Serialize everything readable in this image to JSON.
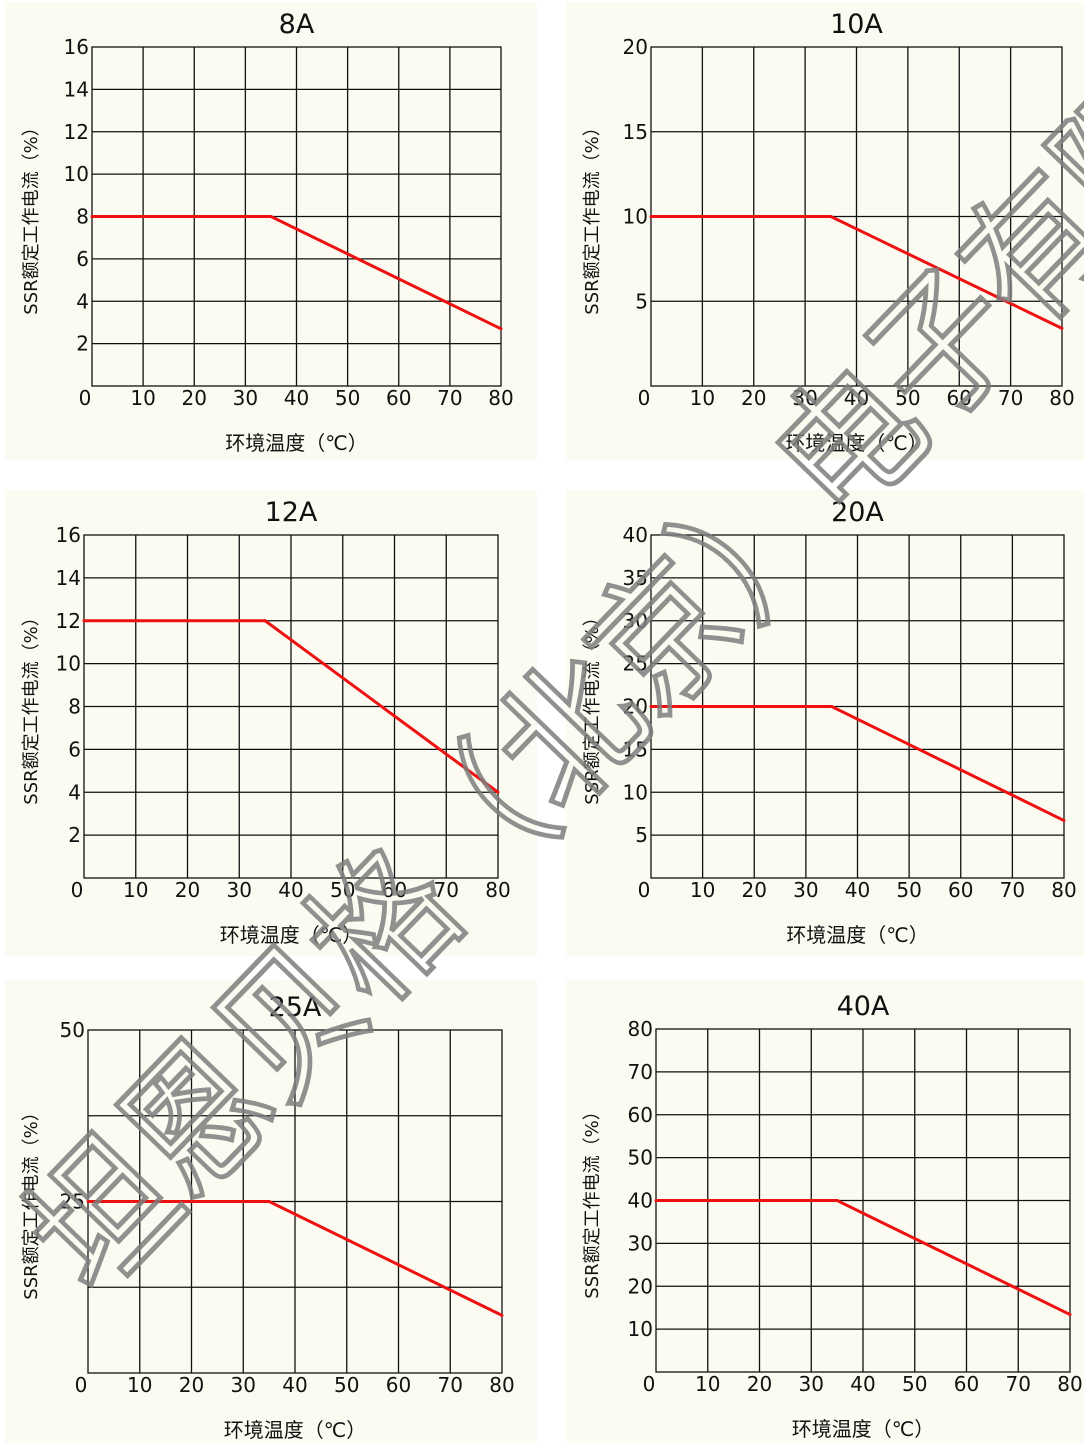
{
  "watermark": {
    "text": "坦恩贝格（北京）电子有限公司",
    "color": "#7d7d7d"
  },
  "colors": {
    "curve": "#ee1111",
    "grid": "#111111",
    "background": "#fcfbf1"
  },
  "chart_data": [
    {
      "type": "line",
      "title": "8A",
      "xlabel": "环境温度（℃）",
      "ylabel": "SSR额定工作电流（%）",
      "xlim": [
        0,
        80
      ],
      "ylim": [
        0,
        16
      ],
      "x_ticks": [
        "10",
        "20",
        "30",
        "40",
        "50",
        "60",
        "70",
        "80"
      ],
      "y_ticks": [
        "16",
        "14",
        "12",
        "10",
        "8",
        "6",
        "4",
        "2"
      ],
      "origin_label": "0",
      "grid": true,
      "series": [
        {
          "x": [
            0,
            35,
            80
          ],
          "y": [
            8,
            8,
            2.7
          ]
        }
      ]
    },
    {
      "type": "line",
      "title": "10A",
      "xlabel": "环境温度（℃）",
      "ylabel": "SSR额定工作电流（%）",
      "xlim": [
        0,
        80
      ],
      "ylim": [
        0,
        20
      ],
      "x_ticks": [
        "10",
        "20",
        "30",
        "40",
        "50",
        "60",
        "70",
        "80"
      ],
      "y_ticks": [
        "20",
        "15",
        "10",
        "5"
      ],
      "origin_label": "0",
      "grid": true,
      "series": [
        {
          "x": [
            0,
            35,
            80
          ],
          "y": [
            10,
            10,
            3.4
          ]
        }
      ]
    },
    {
      "type": "line",
      "title": "12A",
      "xlabel": "环境温度（℃）",
      "ylabel": "SSR额定工作电流（%）",
      "xlim": [
        0,
        80
      ],
      "ylim": [
        0,
        16
      ],
      "x_ticks": [
        "10",
        "20",
        "30",
        "40",
        "50",
        "60",
        "70",
        "80"
      ],
      "y_ticks": [
        "16",
        "14",
        "12",
        "10",
        "8",
        "6",
        "4",
        "2"
      ],
      "origin_label": "0",
      "grid": true,
      "series": [
        {
          "x": [
            0,
            35,
            80
          ],
          "y": [
            12,
            12,
            4
          ]
        }
      ]
    },
    {
      "type": "line",
      "title": "20A",
      "xlabel": "环境温度（℃）",
      "ylabel": "SSR额定工作电流（%）",
      "xlim": [
        0,
        80
      ],
      "ylim": [
        0,
        40
      ],
      "x_ticks": [
        "10",
        "20",
        "30",
        "40",
        "50",
        "60",
        "70",
        "80"
      ],
      "y_ticks": [
        "40",
        "35",
        "30",
        "25",
        "20",
        "15",
        "10",
        "5"
      ],
      "origin_label": "0",
      "grid": true,
      "series": [
        {
          "x": [
            0,
            35,
            80
          ],
          "y": [
            20,
            20,
            6.7
          ]
        }
      ]
    },
    {
      "type": "line",
      "title": "25A",
      "xlabel": "环境温度（℃）",
      "ylabel": "SSR额定工作电流（%）",
      "xlim": [
        0,
        80
      ],
      "ylim": [
        0,
        50
      ],
      "x_ticks": [
        "10",
        "20",
        "30",
        "40",
        "50",
        "60",
        "70",
        "80"
      ],
      "y_ticks": [
        "50",
        "25"
      ],
      "y_grid_step": 12.5,
      "origin_label": "0",
      "grid": true,
      "series": [
        {
          "x": [
            0,
            35,
            80
          ],
          "y": [
            25,
            25,
            8.4
          ]
        }
      ]
    },
    {
      "type": "line",
      "title": "40A",
      "xlabel": "环境温度（℃）",
      "ylabel": "SSR额定工作电流（%）",
      "xlim": [
        0,
        80
      ],
      "ylim": [
        0,
        80
      ],
      "x_ticks": [
        "10",
        "20",
        "30",
        "40",
        "50",
        "60",
        "70",
        "80"
      ],
      "y_ticks": [
        "80",
        "70",
        "60",
        "50",
        "40",
        "30",
        "20",
        "10"
      ],
      "origin_label": "0",
      "grid": true,
      "series": [
        {
          "x": [
            0,
            35,
            80
          ],
          "y": [
            40,
            40,
            13.4
          ]
        }
      ]
    }
  ]
}
